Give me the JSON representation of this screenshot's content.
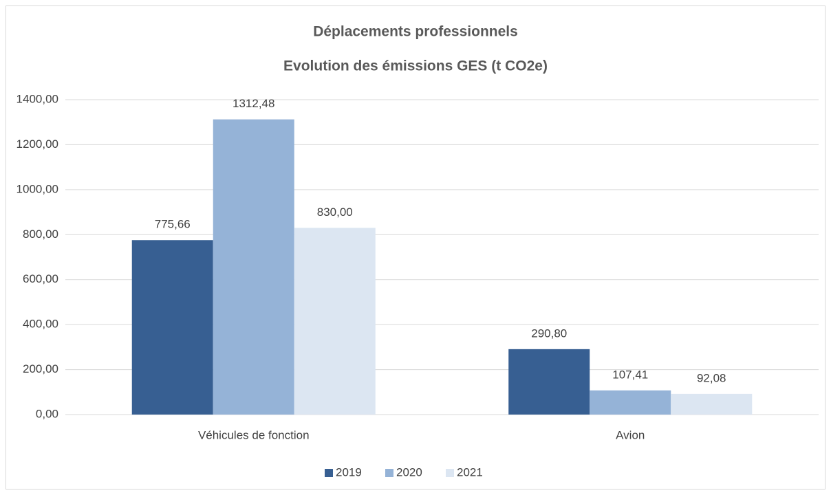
{
  "chart_data": {
    "type": "bar",
    "title": "Déplacements professionnels",
    "subtitle": "Evolution des émissions GES (t CO2e)",
    "categories": [
      "Véhicules de fonction",
      "Avion"
    ],
    "series": [
      {
        "name": "2019",
        "color": "#375f92",
        "values": [
          775.66,
          290.8
        ],
        "value_labels": [
          "775,66",
          "290,80"
        ]
      },
      {
        "name": "2020",
        "color": "#95b3d7",
        "values": [
          1312.48,
          107.41
        ],
        "value_labels": [
          "1312,48",
          "107,41"
        ]
      },
      {
        "name": "2021",
        "color": "#dce6f2",
        "values": [
          830.0,
          92.08
        ],
        "value_labels": [
          "830,00",
          "92,08"
        ]
      }
    ],
    "ylim": [
      0,
      1400
    ],
    "yticks": [
      {
        "value": 0,
        "label": "0,00"
      },
      {
        "value": 200,
        "label": "200,00"
      },
      {
        "value": 400,
        "label": "400,00"
      },
      {
        "value": 600,
        "label": "600,00"
      },
      {
        "value": 800,
        "label": "800,00"
      },
      {
        "value": 1000,
        "label": "1000,00"
      },
      {
        "value": 1200,
        "label": "1200,00"
      },
      {
        "value": 1400,
        "label": "1400,00"
      }
    ],
    "grid": true,
    "legend": "bottom"
  }
}
